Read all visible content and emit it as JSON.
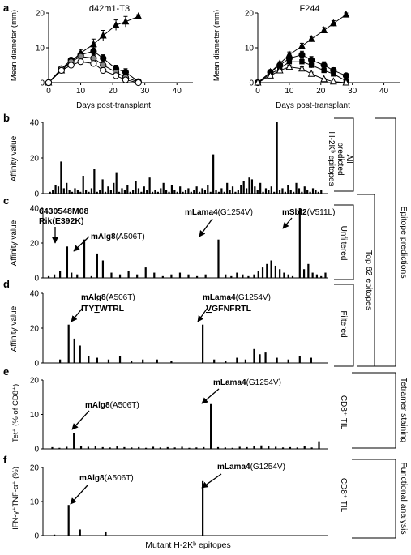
{
  "figure": {
    "panel_letters": [
      "a",
      "b",
      "c",
      "d",
      "e",
      "f"
    ],
    "bottom_xlabel": "Mutant H-2Kᵇ epitopes"
  },
  "chart_data": [
    {
      "panel": "a",
      "type": "line",
      "title": "d42m1-T3",
      "xlabel": "Days post-transplant",
      "ylabel": "Mean diameter (mm)",
      "xlim": [
        0,
        45
      ],
      "ylim": [
        0,
        20
      ],
      "xticks": [
        0,
        10,
        20,
        30,
        40
      ],
      "yticks": [
        0,
        10,
        20
      ],
      "series": [
        {
          "marker": "triangle-filled",
          "x": [
            0,
            4,
            7,
            10,
            14,
            17,
            21,
            24,
            28
          ],
          "y": [
            0,
            3.5,
            6,
            8.5,
            11,
            13.5,
            16.5,
            17.5,
            19
          ],
          "err": [
            0,
            0.5,
            0.8,
            1,
            1.5,
            1.5,
            1.5,
            1.5,
            0.5
          ]
        },
        {
          "marker": "circle-filled",
          "x": [
            0,
            4,
            7,
            10,
            14,
            17,
            21,
            24,
            28
          ],
          "y": [
            0,
            4,
            6.5,
            8,
            9,
            7,
            4,
            3,
            0.3
          ],
          "err": [
            0,
            0.5,
            0.5,
            0.5,
            1,
            1,
            1,
            1,
            0
          ]
        },
        {
          "marker": "circle-grey",
          "x": [
            0,
            4,
            7,
            10,
            14,
            17,
            21,
            24,
            28
          ],
          "y": [
            0,
            4,
            6,
            7.5,
            7,
            5,
            3,
            1.5,
            0.2
          ],
          "err": [
            0,
            0.5,
            0.5,
            0.8,
            1,
            1,
            0.5,
            0.5,
            0
          ]
        },
        {
          "marker": "circle-open",
          "x": [
            0,
            4,
            7,
            10,
            14,
            17,
            21,
            24,
            28
          ],
          "y": [
            0,
            3.5,
            5,
            6,
            5.5,
            3.5,
            2,
            0.8,
            0
          ],
          "err": [
            0,
            0.5,
            0.5,
            0.5,
            0.5,
            0.5,
            0.5,
            0.3,
            0
          ]
        }
      ]
    },
    {
      "panel": "a2",
      "type": "line",
      "title": "F244",
      "xlabel": "Days post-transplant",
      "ylabel": "Mean diameter (mm)",
      "xlim": [
        0,
        45
      ],
      "ylim": [
        0,
        20
      ],
      "xticks": [
        0,
        10,
        20,
        30,
        40
      ],
      "yticks": [
        0,
        10,
        20
      ],
      "series": [
        {
          "marker": "triangle-filled",
          "x": [
            0,
            4,
            7,
            10,
            14,
            17,
            21,
            24,
            28
          ],
          "y": [
            0,
            3,
            5.5,
            8,
            10.5,
            12.5,
            15,
            17,
            19.5
          ],
          "err": [
            0,
            0.5,
            0.5,
            0.8,
            0.8,
            0.8,
            0.8,
            0.8,
            0.5
          ]
        },
        {
          "marker": "circle-filled",
          "x": [
            0,
            4,
            7,
            10,
            14,
            17,
            21,
            24,
            28
          ],
          "y": [
            0,
            3,
            5,
            7,
            8,
            6.5,
            5,
            3.5,
            2
          ],
          "err": [
            0,
            0.5,
            0.5,
            1,
            1,
            1,
            1,
            0.8,
            0.5
          ]
        },
        {
          "marker": "square-filled",
          "x": [
            0,
            4,
            7,
            10,
            14,
            17,
            21,
            24,
            28
          ],
          "y": [
            0,
            2.5,
            4,
            6,
            6,
            5,
            3.5,
            2.5,
            0.5
          ],
          "err": [
            0,
            0.5,
            0.5,
            0.8,
            0.8,
            0.8,
            0.5,
            0.5,
            0
          ]
        },
        {
          "marker": "triangle-open",
          "x": [
            0,
            4,
            7,
            10,
            14,
            17,
            21,
            24,
            28
          ],
          "y": [
            0,
            2,
            3.5,
            4.5,
            4,
            2.5,
            1,
            0.3,
            0
          ],
          "err": [
            0,
            0.3,
            0.5,
            0.5,
            0.5,
            0.5,
            0.3,
            0,
            0
          ]
        }
      ]
    },
    {
      "panel": "b",
      "type": "bar",
      "ylabel": "Affinity value",
      "ylim": [
        0,
        40
      ],
      "yticks": [
        0,
        20,
        40
      ],
      "right_label": [
        "All",
        "predicted",
        "H-2Kᵇ epitopes"
      ],
      "values": [
        1,
        2,
        5,
        4,
        18,
        3,
        6,
        2,
        1,
        3,
        2,
        1,
        10,
        2,
        1,
        3,
        14,
        1,
        2,
        8,
        1,
        4,
        2,
        6,
        12,
        1,
        3,
        2,
        5,
        1,
        2,
        7,
        3,
        1,
        4,
        2,
        9,
        1,
        2,
        1,
        3,
        6,
        2,
        1,
        5,
        2,
        1,
        4,
        1,
        2,
        3,
        1,
        2,
        4,
        1,
        3,
        2,
        5,
        1,
        22,
        2,
        1,
        3,
        1,
        6,
        2,
        4,
        1,
        2,
        5,
        7,
        3,
        9,
        8,
        4,
        2,
        6,
        1,
        3,
        2,
        4,
        1,
        40,
        2,
        3,
        1,
        5,
        2,
        1,
        6,
        3,
        1,
        4,
        2,
        1,
        3,
        2,
        1,
        2
      ]
    },
    {
      "panel": "c",
      "type": "bar",
      "ylabel": "Affinity value",
      "ylim": [
        0,
        40
      ],
      "yticks": [
        0,
        20,
        40
      ],
      "right_label": [
        "Unfiltered"
      ],
      "values": [
        1,
        2,
        4,
        18,
        3,
        2,
        22,
        1,
        14,
        10,
        3,
        2,
        4,
        2,
        6,
        3,
        1,
        2,
        3,
        2,
        1,
        2,
        22,
        2,
        1,
        3,
        2,
        1,
        2,
        4,
        6,
        8,
        10,
        7,
        5,
        3,
        2,
        1,
        40,
        5,
        8,
        3,
        2,
        1,
        3
      ]
    },
    {
      "panel": "d",
      "type": "bar",
      "ylabel": "Affinity value",
      "ylim": [
        0,
        40
      ],
      "yticks": [
        0,
        20,
        40
      ],
      "right_label": [
        "Filtered"
      ],
      "values": [
        2,
        22,
        14,
        10,
        4,
        3,
        2,
        4,
        1,
        2,
        2,
        1,
        22,
        2,
        1,
        3,
        2,
        8,
        5,
        6,
        3,
        2,
        4,
        3
      ]
    },
    {
      "panel": "e",
      "type": "bar",
      "ylabel": "Tet⁺ (% of CD8⁺)",
      "ylim": [
        0,
        20
      ],
      "yticks": [
        0,
        10,
        20
      ],
      "right_label": [
        "CD8⁺ TIL"
      ],
      "values": [
        0.5,
        0.3,
        0.6,
        4.5,
        0.8,
        0.6,
        0.8,
        0.5,
        0.4,
        0.7,
        0.5,
        0.4,
        0.5,
        0.3,
        0.6,
        0.4,
        0.5,
        0.4,
        0.6,
        0.3,
        0.4,
        0.5,
        13,
        0.5,
        0.4,
        0.3,
        0.6,
        0.5,
        0.8,
        1,
        0.7,
        0.6,
        0.4,
        0.5,
        0.4,
        0.8,
        0.4,
        2.2
      ]
    },
    {
      "panel": "f",
      "type": "bar",
      "ylabel": "IFN-γ⁺TNF-α⁺ (%)",
      "ylim": [
        0,
        20
      ],
      "yticks": [
        0,
        10,
        20
      ],
      "right_label": [
        "CD8⁺ TIL"
      ],
      "values": [
        0.3,
        9,
        1.8,
        1.2,
        16
      ]
    }
  ],
  "annotations": {
    "c": {
      "a1_line1": "6430548M08",
      "a1_line2": "Rik(E392K)",
      "a2_gene": "mAlg8",
      "a2_mut": "(A506T)",
      "a3_gene": "mLama4",
      "a3_mut": "(G1254V)",
      "a4_gene": "mSbf2",
      "a4_mut": "(V511L)"
    },
    "d": {
      "a1_gene": "mAlg8",
      "a1_mut": "(A506T)",
      "a1_seq_pre": "ITY",
      "a1_seq_mut": "T",
      "a1_seq_post": "WTRL",
      "a2_gene": "mLama4",
      "a2_mut": "(G1254V)",
      "a2_seq_mut": "V",
      "a2_seq_post": "GFNFRTL"
    },
    "e": {
      "a1_gene": "mAlg8",
      "a1_mut": "(A506T)",
      "a2_gene": "mLama4",
      "a2_mut": "(G1254V)"
    },
    "f": {
      "a1_gene": "mAlg8",
      "a1_mut": "(A506T)",
      "a2_gene": "mLama4",
      "a2_mut": "(G1254V)"
    }
  },
  "brackets": {
    "top62": "Top 62 epitopes",
    "epitope_predictions": "Epitope predictions",
    "tetramer": "Tetramer staining",
    "functional": "Functional analysis"
  },
  "colors": {
    "ink": "#000000",
    "grey_marker": "#888888"
  }
}
